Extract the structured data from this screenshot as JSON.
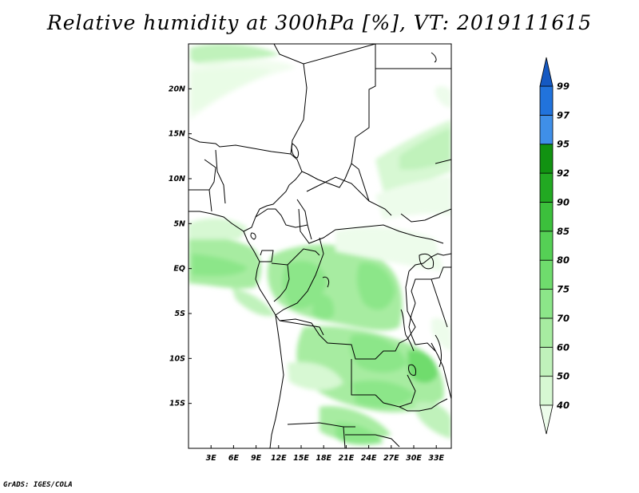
{
  "title": "Relative humidity at 300hPa [%], VT: 2019111615",
  "credit": "GrADS: IGES/COLA",
  "map": {
    "lat_labels": [
      "20N",
      "15N",
      "10N",
      "5N",
      "EQ",
      "5S",
      "10S",
      "15S"
    ],
    "lon_labels": [
      "3E",
      "6E",
      "9E",
      "12E",
      "15E",
      "18E",
      "21E",
      "24E",
      "27E",
      "30E",
      "33E"
    ],
    "domain_lon": [
      0,
      35
    ],
    "domain_lat": [
      -20,
      25
    ]
  },
  "colorbar": {
    "levels": [
      "40",
      "50",
      "60",
      "70",
      "75",
      "80",
      "85",
      "90",
      "92",
      "95",
      "97",
      "99"
    ],
    "colors": [
      "#edfceb",
      "#d7f8d3",
      "#c0f2bb",
      "#a7eca1",
      "#8ce689",
      "#6fdc6d",
      "#55d055",
      "#3cc03c",
      "#22a922",
      "#119211",
      "#3f8fe8",
      "#2173dc",
      "#1559c2"
    ]
  }
}
